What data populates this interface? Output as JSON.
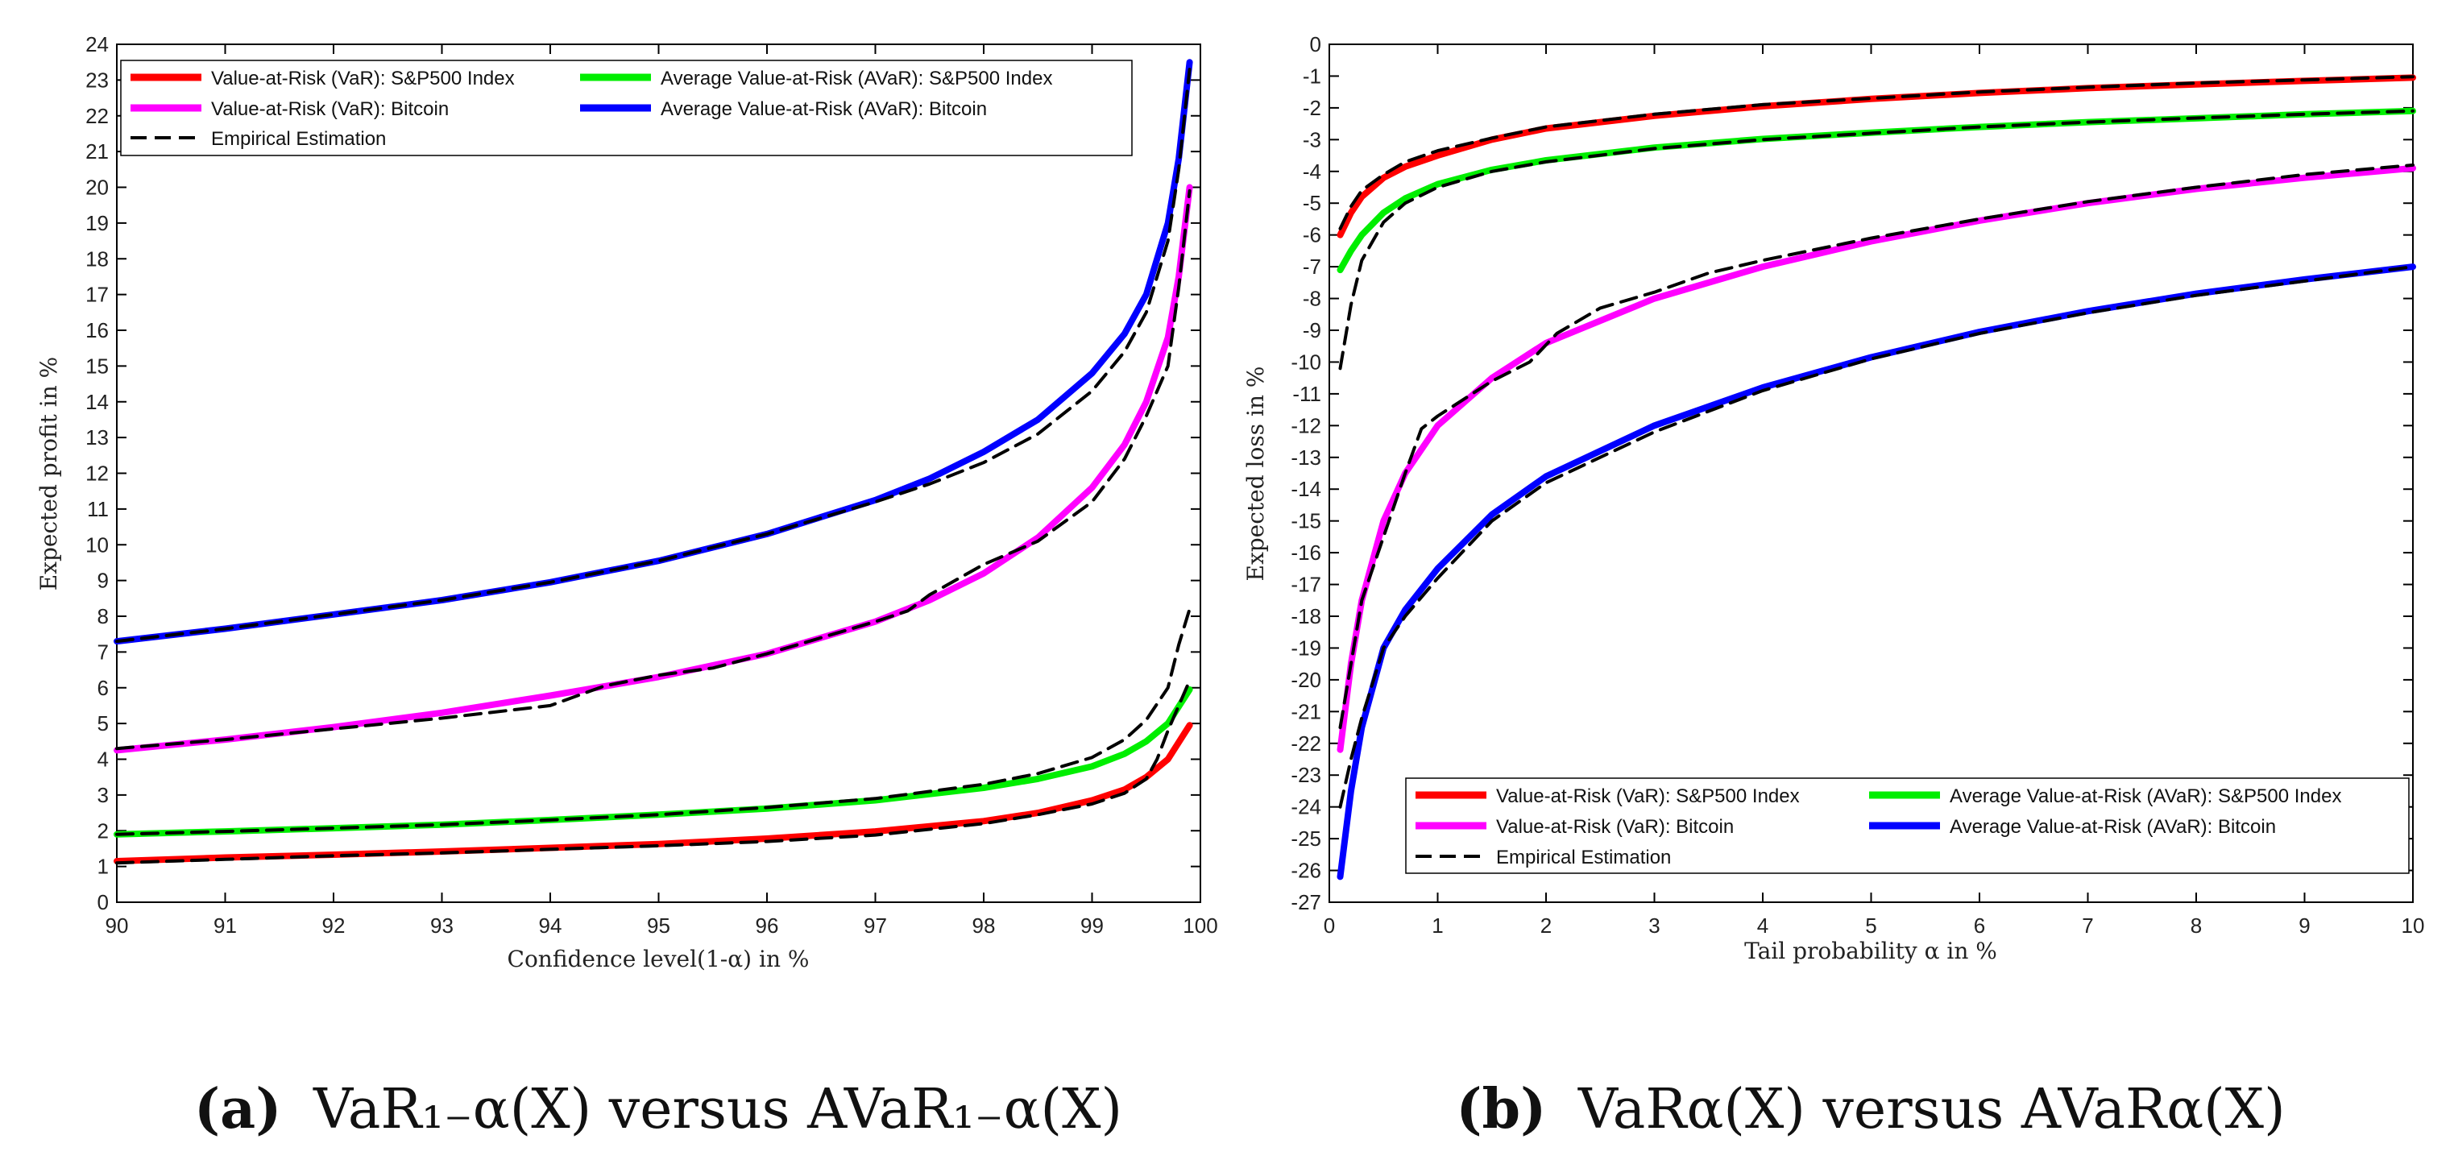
{
  "chart_data": [
    {
      "type": "line",
      "id": "a",
      "caption": {
        "letter": "(a)",
        "text": "VaR₁₋α(X) versus AVaR₁₋α(X)"
      },
      "xlabel": "Confidence level(1-α) in %",
      "ylabel": "Expected profit in %",
      "xlim": [
        90,
        100
      ],
      "ylim": [
        0,
        24
      ],
      "xticks": [
        90,
        91,
        92,
        93,
        94,
        95,
        96,
        97,
        98,
        99,
        100
      ],
      "yticks": [
        0,
        1,
        2,
        3,
        4,
        5,
        6,
        7,
        8,
        9,
        10,
        11,
        12,
        13,
        14,
        15,
        16,
        17,
        18,
        19,
        20,
        21,
        22,
        23,
        24
      ],
      "legend_position": "top-left",
      "legend": [
        {
          "label": "Value-at-Risk (VaR): S&P500 Index",
          "color": "#ff0000",
          "style": "solid"
        },
        {
          "label": "Average Value-at-Risk (AVaR): S&P500 Index",
          "color": "#00ee00",
          "style": "solid"
        },
        {
          "label": "Value-at-Risk (VaR): Bitcoin",
          "color": "#ff00ff",
          "style": "solid"
        },
        {
          "label": "Average Value-at-Risk (AVaR): Bitcoin",
          "color": "#0000ff",
          "style": "solid"
        },
        {
          "label": "Empirical Estimation",
          "color": "#000000",
          "style": "dashed"
        }
      ],
      "series": [
        {
          "name": "VaR S&P500",
          "color": "#ff0000",
          "style": "solid",
          "x": [
            90,
            91,
            92,
            93,
            94,
            95,
            96,
            97,
            98,
            98.5,
            99,
            99.3,
            99.5,
            99.7,
            99.9
          ],
          "y": [
            1.15,
            1.25,
            1.33,
            1.42,
            1.52,
            1.63,
            1.78,
            1.98,
            2.27,
            2.5,
            2.85,
            3.15,
            3.5,
            4.0,
            4.95
          ]
        },
        {
          "name": "AVaR S&P500",
          "color": "#00ee00",
          "style": "solid",
          "x": [
            90,
            91,
            92,
            93,
            94,
            95,
            96,
            97,
            98,
            98.5,
            99,
            99.3,
            99.5,
            99.7,
            99.9
          ],
          "y": [
            1.9,
            1.98,
            2.07,
            2.17,
            2.3,
            2.45,
            2.62,
            2.85,
            3.2,
            3.45,
            3.8,
            4.15,
            4.5,
            5.0,
            5.95
          ]
        },
        {
          "name": "VaR Bitcoin",
          "color": "#ff00ff",
          "style": "solid",
          "x": [
            90,
            91,
            92,
            93,
            94,
            95,
            96,
            97,
            97.5,
            98,
            98.5,
            99,
            99.3,
            99.5,
            99.7,
            99.8,
            99.9
          ],
          "y": [
            4.25,
            4.55,
            4.9,
            5.3,
            5.78,
            6.3,
            6.95,
            7.85,
            8.45,
            9.2,
            10.2,
            11.6,
            12.8,
            14.0,
            15.8,
            17.5,
            20.0
          ]
        },
        {
          "name": "AVaR Bitcoin",
          "color": "#0000ff",
          "style": "solid",
          "x": [
            90,
            91,
            92,
            93,
            94,
            95,
            96,
            97,
            97.5,
            98,
            98.5,
            99,
            99.3,
            99.5,
            99.7,
            99.8,
            99.9
          ],
          "y": [
            7.3,
            7.65,
            8.05,
            8.45,
            8.95,
            9.55,
            10.3,
            11.25,
            11.85,
            12.6,
            13.5,
            14.8,
            15.9,
            17.0,
            19.0,
            20.8,
            23.5
          ]
        },
        {
          "name": "Empirical VaR S&P500",
          "color": "#000000",
          "style": "dashed",
          "x": [
            90,
            91,
            92,
            93,
            94,
            95,
            96,
            97,
            98,
            98.5,
            99,
            99.3,
            99.5,
            99.6,
            99.7,
            99.8,
            99.9
          ],
          "y": [
            1.1,
            1.2,
            1.3,
            1.38,
            1.48,
            1.58,
            1.7,
            1.88,
            2.2,
            2.45,
            2.75,
            3.05,
            3.45,
            4.0,
            4.8,
            5.5,
            6.2
          ]
        },
        {
          "name": "Empirical AVaR S&P500",
          "color": "#000000",
          "style": "dashed",
          "x": [
            90,
            91,
            92,
            93,
            94,
            95,
            96,
            97,
            98,
            98.5,
            99,
            99.3,
            99.5,
            99.7,
            99.8,
            99.9
          ],
          "y": [
            1.9,
            1.98,
            2.07,
            2.17,
            2.3,
            2.45,
            2.65,
            2.9,
            3.3,
            3.6,
            4.05,
            4.55,
            5.1,
            6.0,
            7.2,
            8.2
          ]
        },
        {
          "name": "Empirical VaR Bitcoin",
          "color": "#000000",
          "style": "dashed",
          "x": [
            90,
            91,
            92,
            93,
            94,
            94.5,
            95,
            95.5,
            96,
            96.5,
            97,
            97.3,
            97.5,
            98,
            98.5,
            99,
            99.3,
            99.5,
            99.7,
            99.8,
            99.9
          ],
          "y": [
            4.3,
            4.55,
            4.85,
            5.15,
            5.5,
            6.05,
            6.35,
            6.55,
            6.95,
            7.4,
            7.85,
            8.15,
            8.6,
            9.45,
            10.1,
            11.2,
            12.4,
            13.6,
            15.0,
            17.2,
            19.9
          ]
        },
        {
          "name": "Empirical AVaR Bitcoin",
          "color": "#000000",
          "style": "dashed",
          "x": [
            90,
            91,
            92,
            93,
            94,
            95,
            96,
            97,
            97.5,
            98,
            98.5,
            99,
            99.3,
            99.5,
            99.7,
            99.8,
            99.9
          ],
          "y": [
            7.3,
            7.65,
            8.05,
            8.45,
            8.95,
            9.55,
            10.3,
            11.2,
            11.7,
            12.3,
            13.1,
            14.3,
            15.4,
            16.5,
            18.5,
            20.5,
            23.3
          ]
        }
      ]
    },
    {
      "type": "line",
      "id": "b",
      "caption": {
        "letter": "(b)",
        "text": "VaRα(X) versus AVaRα(X)"
      },
      "xlabel": "Tail probability α in %",
      "ylabel": "Expected loss in %",
      "xlim": [
        0,
        10
      ],
      "ylim": [
        -27,
        0
      ],
      "xticks": [
        0,
        1,
        2,
        3,
        4,
        5,
        6,
        7,
        8,
        9,
        10
      ],
      "yticks": [
        0,
        -1,
        -2,
        -3,
        -4,
        -5,
        -6,
        -7,
        -8,
        -9,
        -10,
        -11,
        -12,
        -13,
        -14,
        -15,
        -16,
        -17,
        -18,
        -19,
        -20,
        -21,
        -22,
        -23,
        -24,
        -25,
        -26,
        -27
      ],
      "legend_position": "bottom-right",
      "legend": [
        {
          "label": "Value-at-Risk (VaR): S&P500 Index",
          "color": "#ff0000",
          "style": "solid"
        },
        {
          "label": "Average Value-at-Risk (AVaR): S&P500 Index",
          "color": "#00ee00",
          "style": "solid"
        },
        {
          "label": "Value-at-Risk (VaR): Bitcoin",
          "color": "#ff00ff",
          "style": "solid"
        },
        {
          "label": "Average Value-at-Risk (AVaR): Bitcoin",
          "color": "#0000ff",
          "style": "solid"
        },
        {
          "label": "Empirical Estimation",
          "color": "#000000",
          "style": "dashed"
        }
      ],
      "series": [
        {
          "name": "VaR S&P500",
          "color": "#ff0000",
          "style": "solid",
          "x": [
            0.1,
            0.2,
            0.3,
            0.5,
            0.7,
            1,
            1.5,
            2,
            3,
            4,
            5,
            6,
            7,
            8,
            9,
            10
          ],
          "y": [
            -6.0,
            -5.3,
            -4.8,
            -4.2,
            -3.85,
            -3.5,
            -3.0,
            -2.65,
            -2.25,
            -1.95,
            -1.72,
            -1.53,
            -1.38,
            -1.26,
            -1.15,
            -1.05
          ]
        },
        {
          "name": "AVaR S&P500",
          "color": "#00ee00",
          "style": "solid",
          "x": [
            0.1,
            0.2,
            0.3,
            0.5,
            0.7,
            1,
            1.5,
            2,
            3,
            4,
            5,
            6,
            7,
            8,
            9,
            10
          ],
          "y": [
            -7.1,
            -6.5,
            -6.0,
            -5.3,
            -4.85,
            -4.4,
            -3.95,
            -3.65,
            -3.25,
            -2.98,
            -2.78,
            -2.6,
            -2.45,
            -2.33,
            -2.2,
            -2.1
          ]
        },
        {
          "name": "VaR Bitcoin",
          "color": "#ff00ff",
          "style": "solid",
          "x": [
            0.1,
            0.2,
            0.3,
            0.5,
            0.7,
            1,
            1.5,
            2,
            3,
            4,
            5,
            6,
            7,
            8,
            9,
            10
          ],
          "y": [
            -22.2,
            -19.5,
            -17.5,
            -15.0,
            -13.5,
            -12.0,
            -10.5,
            -9.4,
            -8.0,
            -7.0,
            -6.2,
            -5.55,
            -5.0,
            -4.55,
            -4.2,
            -3.9
          ]
        },
        {
          "name": "AVaR Bitcoin",
          "color": "#0000ff",
          "style": "solid",
          "x": [
            0.1,
            0.2,
            0.3,
            0.5,
            0.7,
            1,
            1.5,
            2,
            3,
            4,
            5,
            6,
            7,
            8,
            9,
            10
          ],
          "y": [
            -26.2,
            -23.5,
            -21.5,
            -19.0,
            -17.8,
            -16.5,
            -14.8,
            -13.6,
            -12.0,
            -10.8,
            -9.85,
            -9.05,
            -8.4,
            -7.85,
            -7.4,
            -7.0
          ]
        },
        {
          "name": "Empirical VaR S&P500",
          "color": "#000000",
          "style": "dashed",
          "x": [
            0.1,
            0.2,
            0.3,
            0.5,
            0.7,
            1,
            1.5,
            2,
            3,
            4,
            5,
            6,
            7,
            8,
            9,
            10
          ],
          "y": [
            -5.8,
            -5.1,
            -4.6,
            -4.1,
            -3.7,
            -3.35,
            -2.95,
            -2.6,
            -2.2,
            -1.9,
            -1.7,
            -1.5,
            -1.35,
            -1.22,
            -1.12,
            -1.02
          ]
        },
        {
          "name": "Empirical AVaR S&P500",
          "color": "#000000",
          "style": "dashed",
          "x": [
            0.1,
            0.2,
            0.3,
            0.5,
            0.7,
            1,
            1.5,
            2,
            3,
            4,
            5,
            6,
            7,
            8,
            9,
            10
          ],
          "y": [
            -10.2,
            -8.2,
            -6.8,
            -5.6,
            -5.0,
            -4.5,
            -4.0,
            -3.7,
            -3.28,
            -3.0,
            -2.8,
            -2.6,
            -2.45,
            -2.32,
            -2.2,
            -2.1
          ]
        },
        {
          "name": "Empirical VaR Bitcoin",
          "color": "#000000",
          "style": "dashed",
          "x": [
            0.1,
            0.2,
            0.3,
            0.5,
            0.7,
            0.85,
            1,
            1.5,
            1.85,
            2.1,
            2.5,
            3,
            3.5,
            4,
            5,
            6,
            7,
            8,
            9,
            10
          ],
          "y": [
            -21.5,
            -19.5,
            -17.5,
            -15.5,
            -13.5,
            -12.1,
            -11.7,
            -10.6,
            -10.0,
            -9.1,
            -8.3,
            -7.8,
            -7.2,
            -6.8,
            -6.1,
            -5.5,
            -4.95,
            -4.5,
            -4.1,
            -3.8
          ]
        },
        {
          "name": "Empirical AVaR Bitcoin",
          "color": "#000000",
          "style": "dashed",
          "x": [
            0.1,
            0.2,
            0.3,
            0.5,
            0.7,
            1,
            1.5,
            2,
            3,
            4,
            5,
            6,
            7,
            8,
            9,
            10
          ],
          "y": [
            -24.0,
            -22.5,
            -21.2,
            -19.0,
            -18.0,
            -16.8,
            -15.0,
            -13.8,
            -12.2,
            -10.9,
            -9.9,
            -9.1,
            -8.45,
            -7.9,
            -7.45,
            -7.0
          ]
        }
      ]
    }
  ]
}
